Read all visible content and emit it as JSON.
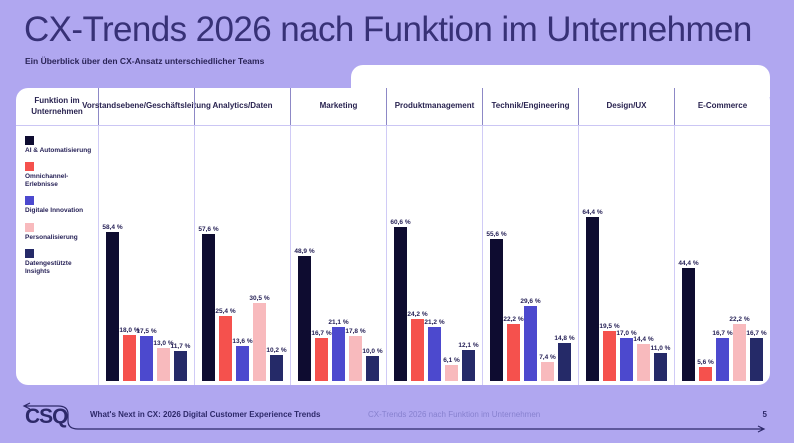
{
  "page": {
    "background_color": "#b0a7f0",
    "card_color": "#ffffff",
    "title_color": "#373176",
    "separator_color": "#cbc6f4",
    "header_tick_color": "#8d88c6",
    "text_color": "#241f55"
  },
  "header": {
    "title": "CX-Trends 2026 nach Funktion im Unternehmen",
    "subtitle": "Ein Überblick über den CX-Ansatz unterschiedlicher Teams"
  },
  "chart_data": {
    "type": "bar",
    "title": "CX-Trends 2026 nach Funktion im Unternehmen",
    "corner_header": "Funktion im Unternehmen",
    "categories": [
      "Vorstandsebene/Geschäftsleitung",
      "Analytics/Daten",
      "Marketing",
      "Produktmanagement",
      "Technik/Engineering",
      "Design/UX",
      "E-Commerce"
    ],
    "series": [
      {
        "name": "AI & Automatisierung",
        "color": "#0e0c30",
        "values": [
          58.4,
          57.6,
          48.9,
          60.6,
          55.6,
          64.4,
          44.4
        ]
      },
      {
        "name": "Omnichannel-Erlebnisse",
        "color": "#f5514d",
        "values": [
          18.0,
          25.4,
          16.7,
          24.2,
          22.2,
          19.5,
          5.6
        ]
      },
      {
        "name": "Digitale Innovation",
        "color": "#4c49ce",
        "values": [
          17.5,
          13.6,
          21.1,
          21.2,
          29.6,
          17.0,
          16.7
        ]
      },
      {
        "name": "Personalisierung",
        "color": "#f8babd",
        "values": [
          13.0,
          30.5,
          17.8,
          6.1,
          7.4,
          14.4,
          22.2
        ]
      },
      {
        "name": "Datengestützte Insights",
        "color": "#252a68",
        "values": [
          11.7,
          10.2,
          10.0,
          12.1,
          14.8,
          11.0,
          16.7
        ]
      }
    ],
    "value_label_example": "58,4 %",
    "unit": "%",
    "ylim": [
      0,
      70
    ],
    "grid": false,
    "legend_position": "left"
  },
  "footer": {
    "logo_text": "CSQ",
    "left_text": "What's Next in CX: 2026 Digital Customer Experience Trends",
    "center_text": "CX-Trends 2026 nach Funktion im Unternehmen",
    "page_number": "5"
  }
}
